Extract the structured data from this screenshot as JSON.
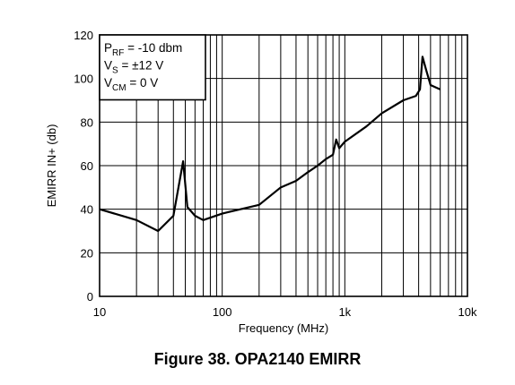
{
  "caption": "Figure 38.  OPA2140 EMIRR",
  "chart_data": {
    "type": "line",
    "xlabel": "Frequency (MHz)",
    "ylabel": "EMIRR IN+ (db)",
    "x_scale": "log",
    "xlim": [
      10,
      10000
    ],
    "ylim": [
      0,
      120
    ],
    "x_ticks": [
      10,
      100,
      1000,
      10000
    ],
    "x_tick_labels": [
      "10",
      "100",
      "1k",
      "10k"
    ],
    "y_ticks": [
      0,
      20,
      40,
      60,
      80,
      100,
      120
    ],
    "y_tick_labels": [
      "0",
      "20",
      "40",
      "60",
      "80",
      "100",
      "120"
    ],
    "grid": true,
    "legend_position": "top-left",
    "annotation_lines": [
      {
        "main": "P",
        "sub": "RF",
        "rest": " = -10 dbm"
      },
      {
        "main": "V",
        "sub": "S",
        "rest": " = ±12 V"
      },
      {
        "main": "V",
        "sub": "CM",
        "rest": " = 0 V"
      }
    ],
    "series": [
      {
        "x": [
          10,
          20,
          30,
          40,
          48,
          52,
          60,
          70,
          100,
          200,
          300,
          400,
          500,
          600,
          700,
          800,
          850,
          900,
          1000,
          1500,
          2000,
          3000,
          3800,
          4100,
          4300,
          4600,
          5000,
          6000
        ],
        "y": [
          40,
          35,
          30,
          37,
          62,
          41,
          37,
          35,
          38,
          42,
          50,
          53,
          57,
          60,
          63,
          65,
          72,
          68,
          71,
          78,
          84,
          90,
          92,
          95,
          110,
          104,
          97,
          95
        ]
      }
    ]
  }
}
